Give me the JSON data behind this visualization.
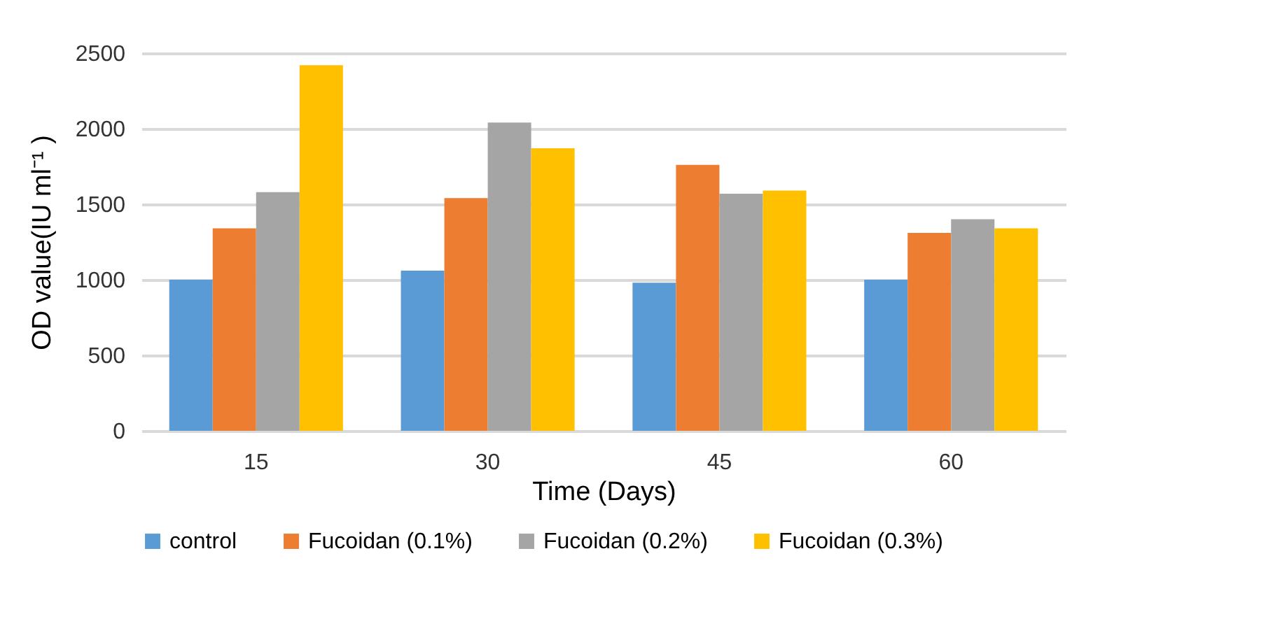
{
  "chart_data": {
    "type": "bar",
    "xlabel": "Time (Days)",
    "ylabel": "OD value(IU ml⁻¹ )",
    "categories": [
      "15",
      "30",
      "45",
      "60"
    ],
    "series": [
      {
        "name": "control",
        "color": "#5b9bd5",
        "values": [
          1000,
          1060,
          980,
          1000
        ]
      },
      {
        "name": "Fucoidan (0.1%)",
        "color": "#ed7d31",
        "values": [
          1340,
          1540,
          1760,
          1310
        ]
      },
      {
        "name": "Fucoidan (0.2%)",
        "color": "#a5a5a5",
        "values": [
          1580,
          2040,
          1570,
          1400
        ]
      },
      {
        "name": "Fucoidan (0.3%)",
        "color": "#ffc000",
        "values": [
          2420,
          1870,
          1590,
          1340
        ]
      }
    ],
    "ylim": [
      0,
      2500
    ],
    "yticks": [
      0,
      500,
      1000,
      1500,
      2000,
      2500
    ],
    "grid": "y",
    "legend": "bottom"
  }
}
